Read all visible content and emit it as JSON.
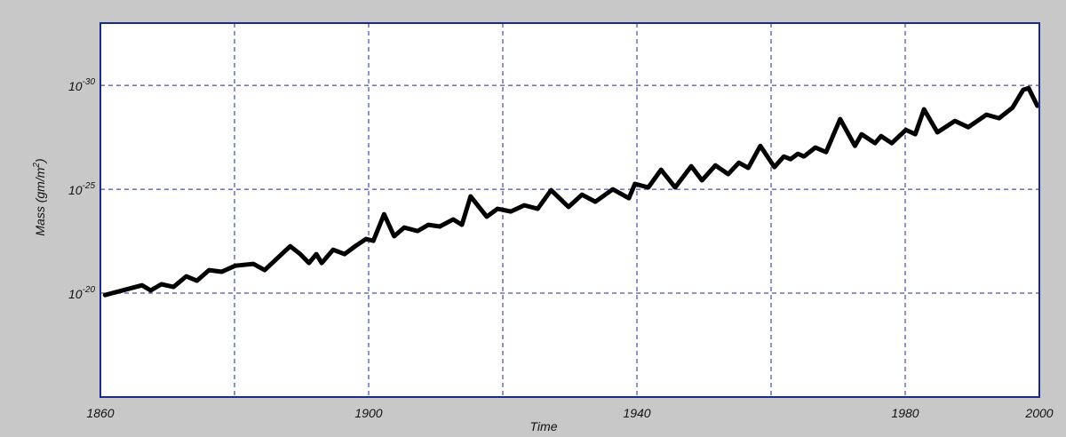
{
  "chart_data": {
    "type": "line",
    "xlabel": "Time",
    "ylabel": {
      "text": "Mass (gm/m",
      "sup": "2",
      "end": ")"
    },
    "x": [
      1860.7,
      1866.2,
      1867.5,
      1869.1,
      1870.9,
      1872.8,
      1874.4,
      1876.2,
      1878.1,
      1880.1,
      1882.8,
      1884.5,
      1888.3,
      1889.8,
      1891.1,
      1892.2,
      1893.0,
      1894.7,
      1896.4,
      1898.0,
      1899.6,
      1900.7,
      1902.3,
      1903.8,
      1905.3,
      1907.3,
      1908.9,
      1910.6,
      1912.6,
      1913.9,
      1915.2,
      1917.6,
      1919.2,
      1921.2,
      1923.2,
      1925.2,
      1927.2,
      1929.8,
      1931.8,
      1933.8,
      1936.4,
      1938.8,
      1939.7,
      1941.7,
      1943.6,
      1945.7,
      1948.1,
      1949.7,
      1951.7,
      1953.6,
      1955.2,
      1956.6,
      1958.4,
      1960.5,
      1961.9,
      1962.9,
      1964.0,
      1964.9,
      1966.6,
      1968.2,
      1970.3,
      1972.5,
      1973.5,
      1975.5,
      1976.4,
      1978.0,
      1980.1,
      1981.5,
      1982.8,
      1984.8,
      1987.4,
      1989.4,
      1992.1,
      1994.0,
      1996.0,
      1997.6,
      1998.4,
      1999.7
    ],
    "series": [
      {
        "name": "Mass",
        "color": "#000000",
        "values": [
          -19.91,
          -20.38,
          -20.13,
          -20.43,
          -20.3,
          -20.81,
          -20.6,
          -21.11,
          -21.03,
          -21.32,
          -21.41,
          -21.11,
          -22.26,
          -21.88,
          -21.45,
          -21.88,
          -21.45,
          -22.09,
          -21.88,
          -22.26,
          -22.61,
          -22.52,
          -23.8,
          -22.74,
          -23.16,
          -22.99,
          -23.29,
          -23.21,
          -23.55,
          -23.29,
          -24.66,
          -23.68,
          -24.06,
          -23.93,
          -24.23,
          -24.06,
          -24.96,
          -24.15,
          -24.74,
          -24.4,
          -25.0,
          -24.57,
          -25.26,
          -25.09,
          -25.94,
          -25.09,
          -26.11,
          -25.43,
          -26.15,
          -25.73,
          -26.28,
          -26.03,
          -27.09,
          -26.07,
          -26.58,
          -26.45,
          -26.71,
          -26.58,
          -27.01,
          -26.79,
          -28.38,
          -27.09,
          -27.65,
          -27.22,
          -27.56,
          -27.22,
          -27.86,
          -27.65,
          -28.85,
          -27.74,
          -28.29,
          -27.99,
          -28.59,
          -28.42,
          -28.93,
          -29.79,
          -29.87,
          -29.02
        ]
      }
    ],
    "xlim": [
      1860,
      2000
    ],
    "xticks": [
      1860,
      1900,
      1940,
      1980,
      2000
    ],
    "xminor": [
      1880,
      1920,
      1960
    ],
    "ylim": [
      -15,
      -33
    ],
    "yticks": [
      {
        "value": -20,
        "label": "10",
        "exponent": "-20"
      },
      {
        "value": -25,
        "label": "10",
        "exponent": "-25"
      },
      {
        "value": -30,
        "label": "10",
        "exponent": "-30"
      }
    ],
    "grid": true
  }
}
